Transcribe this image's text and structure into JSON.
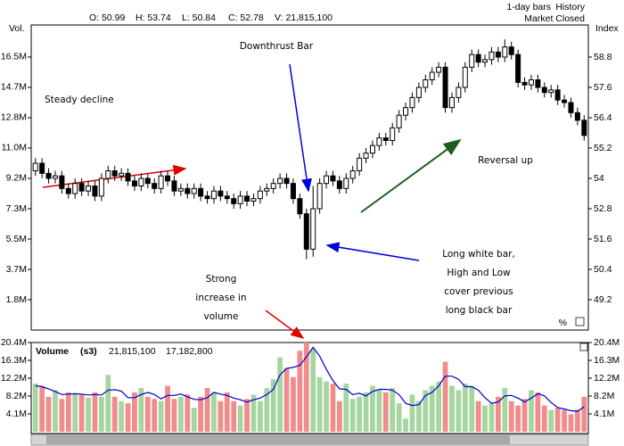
{
  "header": {
    "quote": [
      "O: 50.99",
      "H: 53.74",
      "L: 50.84",
      "C: 52.78",
      "V: 21,815,100"
    ],
    "bars": "1-day bars",
    "history": "History",
    "status": "Market Closed"
  },
  "chart_data": [
    {
      "type": "candlestick",
      "y_label_left": "Vol.",
      "y_label_right": "Index",
      "percent_label": "%",
      "ylim": [
        48,
        60
      ],
      "yticks": [
        49.2,
        50.4,
        51.6,
        52.8,
        54.0,
        55.2,
        56.4,
        57.6,
        58.8
      ],
      "y2lim": [
        0,
        18.33
      ],
      "y2ticks": [
        {
          "value": 1.833,
          "label": "1.8M"
        },
        {
          "value": 3.667,
          "label": "3.7M"
        },
        {
          "value": 5.5,
          "label": "5.5M"
        },
        {
          "value": 7.333,
          "label": "7.3M"
        },
        {
          "value": 9.167,
          "label": "9.2M"
        },
        {
          "value": 11.0,
          "label": "11.0M"
        },
        {
          "value": 12.833,
          "label": "12.8M"
        },
        {
          "value": 14.667,
          "label": "14.7M"
        },
        {
          "value": 16.5,
          "label": "16.5M"
        }
      ],
      "up_color": "#ffffff",
      "down_color": "#000000",
      "open": [
        54.3,
        54.6,
        54.2,
        54.0,
        54.1,
        53.6,
        53.4,
        53.8,
        53.5,
        53.7,
        53.3,
        54.0,
        54.3,
        54.1,
        54.2,
        53.9,
        53.7,
        54.0,
        53.8,
        53.6,
        54.1,
        53.9,
        53.5,
        53.6,
        53.4,
        53.6,
        53.3,
        53.2,
        53.5,
        53.3,
        53.2,
        53.0,
        53.3,
        53.1,
        53.2,
        53.5,
        53.6,
        53.8,
        54.0,
        53.8,
        53.2,
        52.6,
        51.2,
        52.8,
        53.8,
        54.1,
        53.9,
        53.6,
        54.0,
        54.3,
        54.8,
        55.0,
        55.3,
        55.6,
        55.5,
        56.0,
        56.5,
        56.8,
        57.2,
        57.6,
        57.9,
        58.2,
        58.4,
        56.8,
        57.2,
        57.6,
        58.4,
        58.9,
        58.6,
        58.7,
        59.0,
        58.8,
        59.2,
        58.9,
        57.8,
        57.7,
        57.9,
        57.6,
        57.4,
        57.5,
        57.1,
        57.0,
        56.6,
        56.3
      ],
      "high": [
        54.8,
        54.8,
        54.4,
        54.3,
        54.3,
        53.8,
        54.0,
        54.0,
        53.9,
        53.9,
        54.2,
        54.5,
        54.5,
        54.4,
        54.4,
        54.1,
        54.2,
        54.2,
        54.0,
        54.3,
        54.3,
        54.1,
        53.8,
        53.8,
        53.8,
        53.8,
        53.5,
        53.7,
        53.7,
        53.5,
        53.4,
        53.5,
        53.5,
        53.4,
        53.7,
        53.8,
        54.0,
        54.2,
        54.2,
        54.0,
        53.4,
        52.8,
        53.7,
        54.0,
        54.3,
        54.3,
        54.1,
        54.2,
        54.5,
        55.0,
        55.2,
        55.5,
        55.8,
        55.8,
        56.2,
        56.7,
        57.0,
        57.4,
        57.8,
        58.1,
        58.4,
        58.6,
        58.6,
        57.4,
        57.8,
        58.6,
        59.1,
        59.1,
        58.9,
        59.2,
        59.2,
        59.5,
        59.4,
        59.1,
        58.0,
        58.1,
        58.1,
        57.8,
        57.7,
        57.7,
        57.3,
        57.2,
        56.8,
        56.5
      ],
      "low": [
        54.1,
        54.0,
        53.8,
        53.8,
        53.4,
        53.2,
        53.2,
        53.3,
        53.3,
        53.1,
        53.1,
        53.8,
        53.9,
        53.9,
        53.7,
        53.5,
        53.5,
        53.6,
        53.4,
        53.4,
        53.7,
        53.3,
        53.3,
        53.2,
        53.2,
        53.1,
        53.0,
        53.0,
        53.1,
        53.0,
        52.8,
        52.8,
        52.9,
        52.9,
        53.0,
        53.3,
        53.4,
        53.6,
        53.6,
        53.0,
        52.4,
        50.8,
        50.9,
        52.6,
        53.6,
        53.7,
        53.4,
        53.4,
        53.8,
        54.1,
        54.6,
        54.8,
        55.1,
        55.3,
        55.3,
        55.8,
        56.3,
        56.6,
        57.0,
        57.4,
        57.7,
        58.0,
        56.6,
        56.6,
        57.0,
        57.4,
        58.2,
        58.4,
        58.4,
        58.5,
        58.6,
        58.6,
        58.7,
        57.6,
        57.5,
        57.5,
        57.4,
        57.2,
        57.2,
        56.9,
        56.8,
        56.4,
        56.1,
        55.5
      ],
      "close": [
        54.6,
        54.2,
        54.0,
        54.1,
        53.6,
        53.4,
        53.8,
        53.5,
        53.7,
        53.3,
        54.0,
        54.3,
        54.1,
        54.2,
        53.9,
        53.7,
        54.0,
        53.8,
        53.6,
        54.1,
        53.9,
        53.5,
        53.6,
        53.4,
        53.6,
        53.3,
        53.2,
        53.5,
        53.3,
        53.2,
        53.0,
        53.3,
        53.1,
        53.2,
        53.5,
        53.6,
        53.8,
        54.0,
        53.8,
        53.2,
        52.6,
        51.2,
        52.8,
        53.8,
        54.1,
        53.9,
        53.6,
        54.0,
        54.3,
        54.8,
        55.0,
        55.3,
        55.6,
        55.5,
        56.0,
        56.5,
        56.8,
        57.2,
        57.6,
        57.9,
        58.2,
        58.4,
        56.8,
        57.2,
        57.6,
        58.4,
        58.9,
        58.6,
        58.7,
        59.0,
        58.8,
        59.2,
        58.9,
        57.8,
        57.7,
        57.9,
        57.6,
        57.4,
        57.5,
        57.1,
        57.0,
        56.6,
        56.3,
        55.7
      ],
      "annotations": [
        {
          "lines": [
            "Downthrust Bar"
          ],
          "color": "#0000dd"
        },
        {
          "lines": [
            "Steady decline"
          ],
          "color": "#e00000"
        },
        {
          "lines": [
            "Reversal up"
          ],
          "color": "#1d5e1d"
        },
        {
          "lines": [
            "Long white bar,",
            "High and Low",
            "cover previous",
            "long black bar"
          ],
          "color": "#0000dd"
        },
        {
          "lines": [
            "Strong",
            "increase in",
            "volume"
          ],
          "color": "#e00000"
        }
      ]
    },
    {
      "type": "bar",
      "title": "Volume",
      "study": "(s3)",
      "legend_values": [
        "21,815,100",
        "17,182,800"
      ],
      "up_color": "#a6d6a0",
      "down_color": "#f08c8c",
      "ylim": [
        0,
        20.4
      ],
      "yticks": [
        {
          "value": 4.08,
          "label": "4.1M"
        },
        {
          "value": 8.16,
          "label": "8.2M"
        },
        {
          "value": 12.24,
          "label": "12.2M"
        },
        {
          "value": 16.32,
          "label": "16.3M"
        },
        {
          "value": 20.4,
          "label": "20.4M"
        }
      ],
      "values": [
        11.0,
        10.5,
        8.0,
        9.5,
        7.5,
        9.0,
        8.8,
        8.5,
        7.8,
        9.0,
        8.0,
        13.0,
        8.0,
        7.0,
        6.5,
        9.0,
        10.0,
        8.0,
        7.5,
        7.0,
        10.5,
        7.5,
        8.0,
        8.5,
        5.5,
        8.0,
        10.0,
        9.0,
        7.0,
        9.0,
        7.0,
        6.0,
        7.5,
        8.5,
        7.0,
        10.0,
        12.0,
        17.0,
        14.5,
        12.5,
        18.5,
        20.4,
        19.0,
        12.5,
        11.5,
        11.0,
        7.0,
        11.0,
        7.5,
        8.0,
        9.0,
        10.5,
        9.5,
        9.0,
        10.0,
        6.5,
        3.0,
        8.5,
        7.0,
        9.5,
        10.5,
        11.5,
        16.0,
        10.5,
        9.5,
        11.0,
        10.5,
        7.0,
        6.0,
        6.5,
        8.0,
        10.0,
        7.0,
        6.0,
        7.5,
        9.5,
        9.0,
        6.0,
        5.0,
        5.5,
        5.0,
        4.0,
        5.0,
        8.0
      ],
      "ma": {
        "color": "#0000cc",
        "values": [
          10.5,
          10.3,
          9.8,
          9.2,
          8.5,
          8.6,
          8.7,
          8.6,
          8.4,
          8.5,
          8.4,
          9.5,
          9.6,
          9.3,
          7.8,
          7.8,
          8.5,
          9.0,
          8.5,
          7.5,
          8.3,
          8.3,
          8.6,
          8.0,
          7.4,
          7.3,
          7.8,
          9.0,
          8.6,
          8.3,
          7.7,
          7.3,
          6.8,
          7.3,
          7.7,
          8.5,
          9.7,
          13.0,
          14.5,
          14.7,
          15.2,
          17.1,
          19.3,
          17.3,
          14.3,
          11.7,
          9.8,
          9.7,
          8.5,
          8.8,
          8.2,
          9.2,
          9.7,
          9.7,
          9.5,
          8.5,
          6.5,
          6.0,
          6.2,
          8.3,
          9.0,
          10.5,
          12.7,
          12.7,
          12.0,
          10.3,
          10.3,
          9.5,
          7.8,
          6.5,
          6.8,
          8.2,
          8.3,
          7.7,
          6.8,
          7.7,
          8.7,
          8.2,
          6.7,
          5.5,
          5.2,
          4.8,
          4.7,
          5.7
        ]
      }
    }
  ]
}
